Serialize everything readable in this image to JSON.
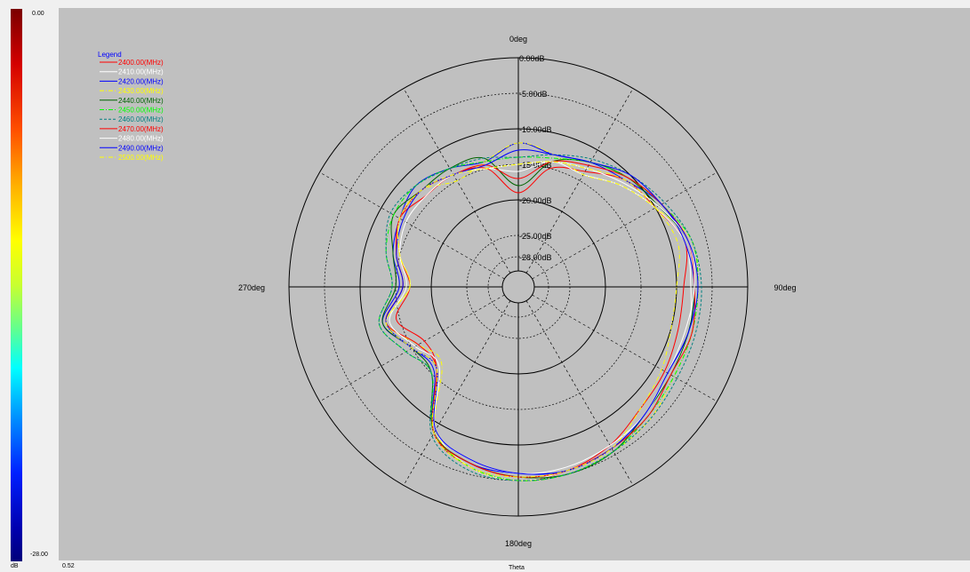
{
  "colorbar": {
    "max_label": "0.00",
    "min_label": "-28.00",
    "unit_label": "dB",
    "value_label": "0.52"
  },
  "axis": {
    "theta_label": "Theta",
    "angle_labels": [
      "0deg",
      "90deg",
      "180deg",
      "270deg"
    ]
  },
  "legend": {
    "title": "Legend",
    "entries": [
      {
        "label": "2400.00(MHz)",
        "color": "#ff0000",
        "dash": "solid"
      },
      {
        "label": "2410.00(MHz)",
        "color": "#ffffff",
        "dash": "solid"
      },
      {
        "label": "2420.00(MHz)",
        "color": "#0000ff",
        "dash": "solid"
      },
      {
        "label": "2430.00(MHz)",
        "color": "#ffff00",
        "dash": "dashdot"
      },
      {
        "label": "2440.00(MHz)",
        "color": "#006400",
        "dash": "solid"
      },
      {
        "label": "2450.00(MHz)",
        "color": "#00ff00",
        "dash": "dashdot"
      },
      {
        "label": "2460.00(MHz)",
        "color": "#008080",
        "dash": "dashed"
      },
      {
        "label": "2470.00(MHz)",
        "color": "#ff0000",
        "dash": "solid"
      },
      {
        "label": "2480.00(MHz)",
        "color": "#ffffff",
        "dash": "solid"
      },
      {
        "label": "2490.00(MHz)",
        "color": "#0000ff",
        "dash": "solid"
      },
      {
        "label": "2500.00(MHz)",
        "color": "#ffff00",
        "dash": "dashdot"
      }
    ]
  },
  "chart_data": {
    "type": "polar",
    "xlabel": "Theta",
    "radial_unit": "dB",
    "radial_range": [
      -30,
      0
    ],
    "radial_tick_labels": [
      "0.00dB",
      "-5.00dB",
      "-10.00dB",
      "-15.00dB",
      "-20.00dB",
      "-25.00dB",
      "-28.00dB"
    ],
    "radial_tick_values": [
      0,
      -5,
      -10,
      -15,
      -20,
      -25,
      -28
    ],
    "angle_tick_labels": [
      "0deg",
      "90deg",
      "180deg",
      "270deg"
    ],
    "angle_grid_step_deg": 30,
    "grid": true,
    "legend_position": "top-left",
    "theta_deg": [
      0,
      15,
      30,
      45,
      60,
      75,
      90,
      105,
      120,
      135,
      150,
      165,
      180,
      195,
      210,
      225,
      240,
      255,
      270,
      285,
      300,
      315,
      330,
      345
    ],
    "series": [
      {
        "name": "2400.00(MHz)",
        "values": [
          -19,
          -15,
          -13.5,
          -11,
          -10,
          -8,
          -9,
          -9,
          -8.5,
          -8,
          -6.5,
          -5.5,
          -5,
          -6,
          -8.5,
          -16,
          -17,
          -14.5,
          -17,
          -15,
          -13,
          -14,
          -14,
          -15
        ]
      },
      {
        "name": "2410.00(MHz)",
        "values": [
          -16,
          -14,
          -14,
          -12,
          -10,
          -8,
          -8,
          -7.5,
          -7.5,
          -7,
          -6,
          -5.5,
          -5,
          -6,
          -9,
          -16,
          -15,
          -13,
          -17,
          -15,
          -13,
          -13,
          -14,
          -15
        ]
      },
      {
        "name": "2420.00(MHz)",
        "values": [
          -12,
          -13,
          -12,
          -11,
          -9,
          -8,
          -7.5,
          -7.5,
          -8,
          -7,
          -6,
          -5.5,
          -6,
          -6.5,
          -8.5,
          -15.5,
          -15,
          -12.5,
          -15.5,
          -14,
          -13,
          -12,
          -13,
          -14
        ]
      },
      {
        "name": "2430.00(MHz)",
        "values": [
          -12,
          -13,
          -14,
          -12,
          -10,
          -7,
          -7,
          -7,
          -7,
          -6,
          -5.5,
          -5,
          -5,
          -6,
          -9,
          -17,
          -16,
          -13,
          -17,
          -15,
          -13,
          -13,
          -15,
          -14
        ]
      },
      {
        "name": "2440.00(MHz)",
        "values": [
          -18,
          -14,
          -12,
          -10.5,
          -9.5,
          -7.5,
          -7.5,
          -7.5,
          -7.5,
          -7,
          -5.5,
          -5,
          -5.5,
          -6.5,
          -8.5,
          -15,
          -15,
          -12.5,
          -15,
          -14,
          -12,
          -13,
          -13,
          -13.5
        ]
      },
      {
        "name": "2450.00(MHz)",
        "values": [
          -14,
          -13.5,
          -12,
          -10.5,
          -9,
          -7,
          -7,
          -7,
          -7,
          -6.5,
          -5.5,
          -5,
          -5,
          -6,
          -8.5,
          -15,
          -14,
          -12,
          -14.5,
          -13,
          -12,
          -12,
          -13,
          -14
        ]
      },
      {
        "name": "2460.00(MHz)",
        "values": [
          -14,
          -13,
          -11.5,
          -10,
          -8.5,
          -7,
          -6.5,
          -6.5,
          -6.5,
          -6,
          -5.5,
          -5,
          -5,
          -5.5,
          -8,
          -15,
          -14,
          -12,
          -14.5,
          -13,
          -11.5,
          -12,
          -13,
          -13.5
        ]
      },
      {
        "name": "2470.00(MHz)",
        "values": [
          -17,
          -14,
          -12.5,
          -10.5,
          -9,
          -7.5,
          -7.5,
          -7,
          -7.5,
          -6.5,
          -6,
          -5.5,
          -5.5,
          -6.5,
          -8.5,
          -16,
          -16,
          -13,
          -16,
          -14.5,
          -13,
          -13,
          -14,
          -14.5
        ]
      },
      {
        "name": "2480.00(MHz)",
        "values": [
          -15,
          -14,
          -13,
          -11.5,
          -9.5,
          -7.5,
          -7.5,
          -8,
          -8,
          -7,
          -6.5,
          -6,
          -6,
          -7,
          -9,
          -16.5,
          -15.5,
          -13.5,
          -16.5,
          -15,
          -14,
          -14,
          -14,
          -15
        ]
      },
      {
        "name": "2490.00(MHz)",
        "values": [
          -13,
          -13,
          -12,
          -10,
          -9,
          -7.5,
          -7,
          -7.5,
          -8,
          -7,
          -6,
          -5.5,
          -6,
          -7,
          -9,
          -16,
          -15,
          -13,
          -16,
          -14.5,
          -13.5,
          -13,
          -14,
          -14.5
        ]
      },
      {
        "name": "2500.00(MHz)",
        "values": [
          -15,
          -14,
          -13,
          -11,
          -10,
          -9,
          -10,
          -10,
          -9,
          -8,
          -6,
          -5.5,
          -5.5,
          -6,
          -8.5,
          -16,
          -15,
          -13,
          -17,
          -15,
          -13,
          -13,
          -14,
          -15
        ]
      }
    ]
  }
}
